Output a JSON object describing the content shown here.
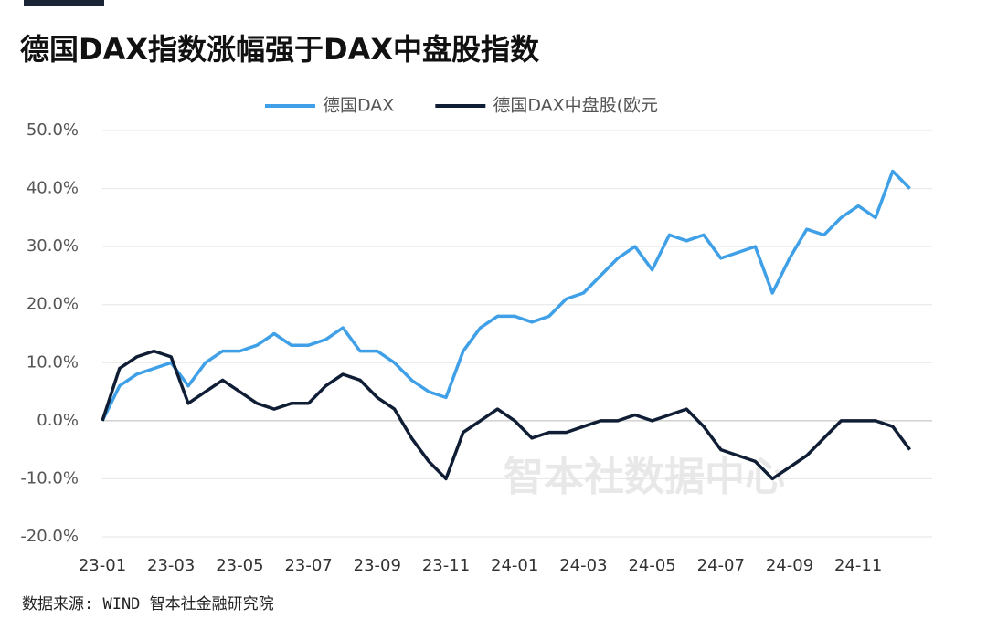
{
  "chart_data": {
    "type": "line",
    "title": "德国DAX指数涨幅强于DAX中盘股指数",
    "source": "数据来源: WIND 智本社金融研究院",
    "watermark": "智本社数据中心",
    "categories": [
      "23-01",
      null,
      null,
      null,
      "23-03",
      null,
      null,
      null,
      "23-05",
      null,
      null,
      null,
      "23-07",
      null,
      null,
      null,
      "23-09",
      null,
      null,
      null,
      "23-11",
      null,
      null,
      null,
      "24-01",
      null,
      null,
      null,
      "24-03",
      null,
      null,
      null,
      "24-05",
      null,
      null,
      null,
      "24-07",
      null,
      null,
      null,
      "24-09",
      null,
      null,
      null,
      "24-11",
      null,
      null,
      null
    ],
    "series": [
      {
        "name": "德国DAX",
        "color": "#3fa0e8",
        "values": [
          0,
          6,
          8,
          9,
          10,
          6,
          10,
          12,
          12,
          13,
          15,
          13,
          13,
          14,
          16,
          12,
          12,
          10,
          7,
          5,
          4,
          12,
          16,
          18,
          18,
          17,
          18,
          21,
          22,
          25,
          28,
          30,
          26,
          32,
          31,
          32,
          28,
          29,
          30,
          22,
          28,
          33,
          32,
          35,
          37,
          35,
          43,
          40
        ]
      },
      {
        "name": "德国DAX中盘股(欧元",
        "color": "#0f1e35",
        "values": [
          0,
          9,
          11,
          12,
          11,
          3,
          5,
          7,
          5,
          3,
          2,
          3,
          3,
          6,
          8,
          7,
          4,
          2,
          -3,
          -7,
          -10,
          -2,
          0,
          2,
          0,
          -3,
          -2,
          -2,
          -1,
          0,
          0,
          1,
          0,
          1,
          2,
          -1,
          -5,
          -6,
          -7,
          -10,
          -8,
          -6,
          -3,
          0,
          0,
          0,
          -1,
          -5
        ]
      }
    ],
    "ylim": [
      -20,
      50
    ],
    "yticks": [
      {
        "value": -20,
        "label": "-20.0%"
      },
      {
        "value": -10,
        "label": "-10.0%"
      },
      {
        "value": 0,
        "label": "0.0%"
      },
      {
        "value": 10,
        "label": "10.0%"
      },
      {
        "value": 20,
        "label": "20.0%"
      },
      {
        "value": 30,
        "label": "30.0%"
      },
      {
        "value": 40,
        "label": "40.0%"
      },
      {
        "value": 50,
        "label": "50.0%"
      }
    ],
    "grid": true,
    "legend": "top"
  }
}
